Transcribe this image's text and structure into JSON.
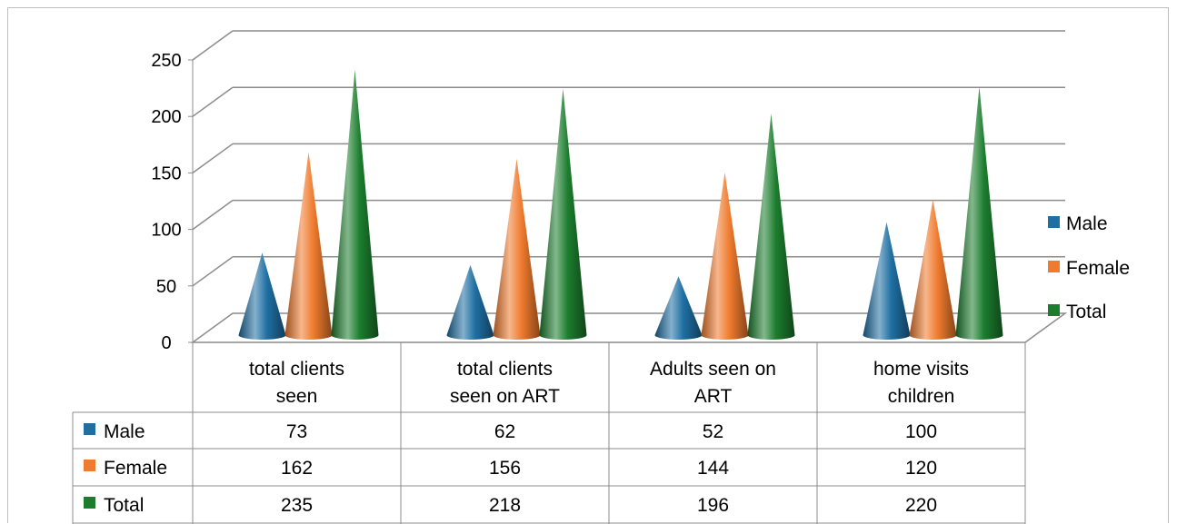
{
  "chart_data": {
    "type": "bar",
    "style": "3d-cone",
    "categories": [
      [
        "total clients",
        "seen"
      ],
      [
        "total clients",
        "seen on ART"
      ],
      [
        "Adults seen on",
        "ART"
      ],
      [
        "home visits",
        "children"
      ]
    ],
    "series": [
      {
        "name": "Male",
        "color": "#1f6fa3",
        "values": [
          73,
          62,
          52,
          100
        ]
      },
      {
        "name": "Female",
        "color": "#f07b2e",
        "values": [
          162,
          156,
          144,
          120
        ]
      },
      {
        "name": "Total",
        "color": "#1c7d2e",
        "values": [
          235,
          218,
          196,
          220
        ]
      }
    ],
    "y_ticks": [
      "0",
      "50",
      "100",
      "150",
      "200",
      "250"
    ],
    "ylim": [
      0,
      250
    ],
    "grid": true,
    "legend": "right",
    "data_table": true
  }
}
